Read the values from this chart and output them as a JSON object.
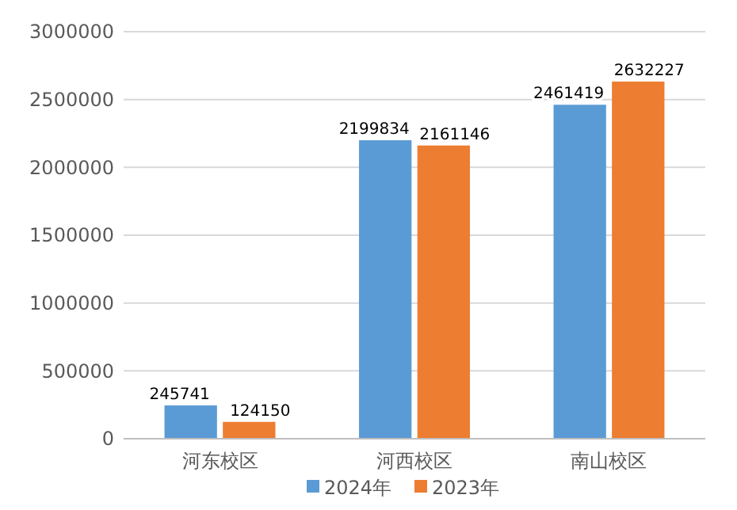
{
  "chart_data": {
    "type": "bar",
    "categories": [
      "河东校区",
      "河西校区",
      "南山校区"
    ],
    "series": [
      {
        "name": "2024年",
        "color": "#5b9bd5",
        "values": [
          245741,
          2199834,
          2461419
        ]
      },
      {
        "name": "2023年",
        "color": "#ed7d31",
        "values": [
          124150,
          2161146,
          2632227
        ]
      }
    ],
    "ylim": [
      0,
      3000000
    ],
    "yticks": [
      0,
      500000,
      1000000,
      1500000,
      2000000,
      2500000,
      3000000
    ],
    "grid": "y",
    "legend": "bottom",
    "data_labels": true
  }
}
